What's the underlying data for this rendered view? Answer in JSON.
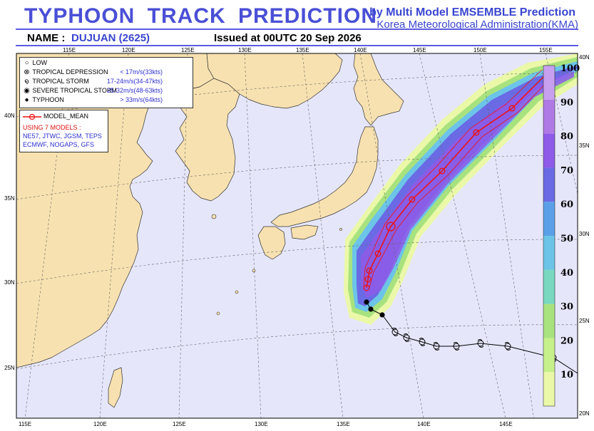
{
  "header": {
    "title": "TYPHOON TRACK PREDICTION",
    "agency_line1": "by Multi Model EMSEMBLE Prediction",
    "agency_line2": "Korea Meteorological Administration(KMA)",
    "name_label": "NAME :",
    "name_value": "DUJUAN (2625)",
    "issued": "Issued at  00UTC 20 Sep 2026"
  },
  "axes": {
    "top_lon": [
      "115E",
      "120E",
      "125E",
      "130E",
      "135E",
      "140E",
      "145E",
      "150E",
      "155E"
    ],
    "bottom_lon": [
      "115E",
      "120E",
      "125E",
      "130E",
      "135E",
      "140E",
      "145E"
    ],
    "left_lat": [
      "40N",
      "35N",
      "30N",
      "25N"
    ],
    "right_lat": [
      "40N",
      "35N",
      "30N",
      "25N",
      "20N"
    ],
    "bottom_right_lat": "20N"
  },
  "legend": {
    "items": [
      {
        "label": "LOW",
        "icon": "low-icon",
        "range": ""
      },
      {
        "label": "TROPICAL DEPRESSION",
        "icon": "tropical-depression-icon",
        "range": "< 17m/s(33kts)"
      },
      {
        "label": "TROPICAL STORM",
        "icon": "tropical-storm-icon",
        "range": "17-24m/s(34-47kts)"
      },
      {
        "label": "SEVERE TROPICAL STORM",
        "icon": "severe-tropical-storm-icon",
        "range": "25-32m/s(48-63kts)"
      },
      {
        "label": "TYPHOON",
        "icon": "typhoon-icon",
        "range": "> 33m/s(64kts)"
      }
    ]
  },
  "models": {
    "mean_label": "MODEL_MEAN",
    "using": "USING 7 MODELS :",
    "list1": "NE57, JTWC, JGSM, TEPS",
    "list2": "ECMWF, NOGAPS, GFS"
  },
  "colorbar": {
    "labels": [
      "100",
      "90",
      "80",
      "70",
      "60",
      "50",
      "40",
      "30",
      "20",
      "10"
    ],
    "colors": [
      "#eaf8a8",
      "#c6f08a",
      "#a8e27e",
      "#78d8c0",
      "#6cc4e8",
      "#5aa0e8",
      "#6a6ae4",
      "#8e5ae8",
      "#b07ae6",
      "#c8a0f0"
    ]
  },
  "track": {
    "past_points": 10,
    "forecast_points": 10
  },
  "colors": {
    "ocean": "#e6e6fb",
    "land": "#f7e1b0",
    "coast": "#333333",
    "grid": "#666666",
    "track_mean": "#ee1111",
    "title_blue": "#4a4fd6"
  }
}
